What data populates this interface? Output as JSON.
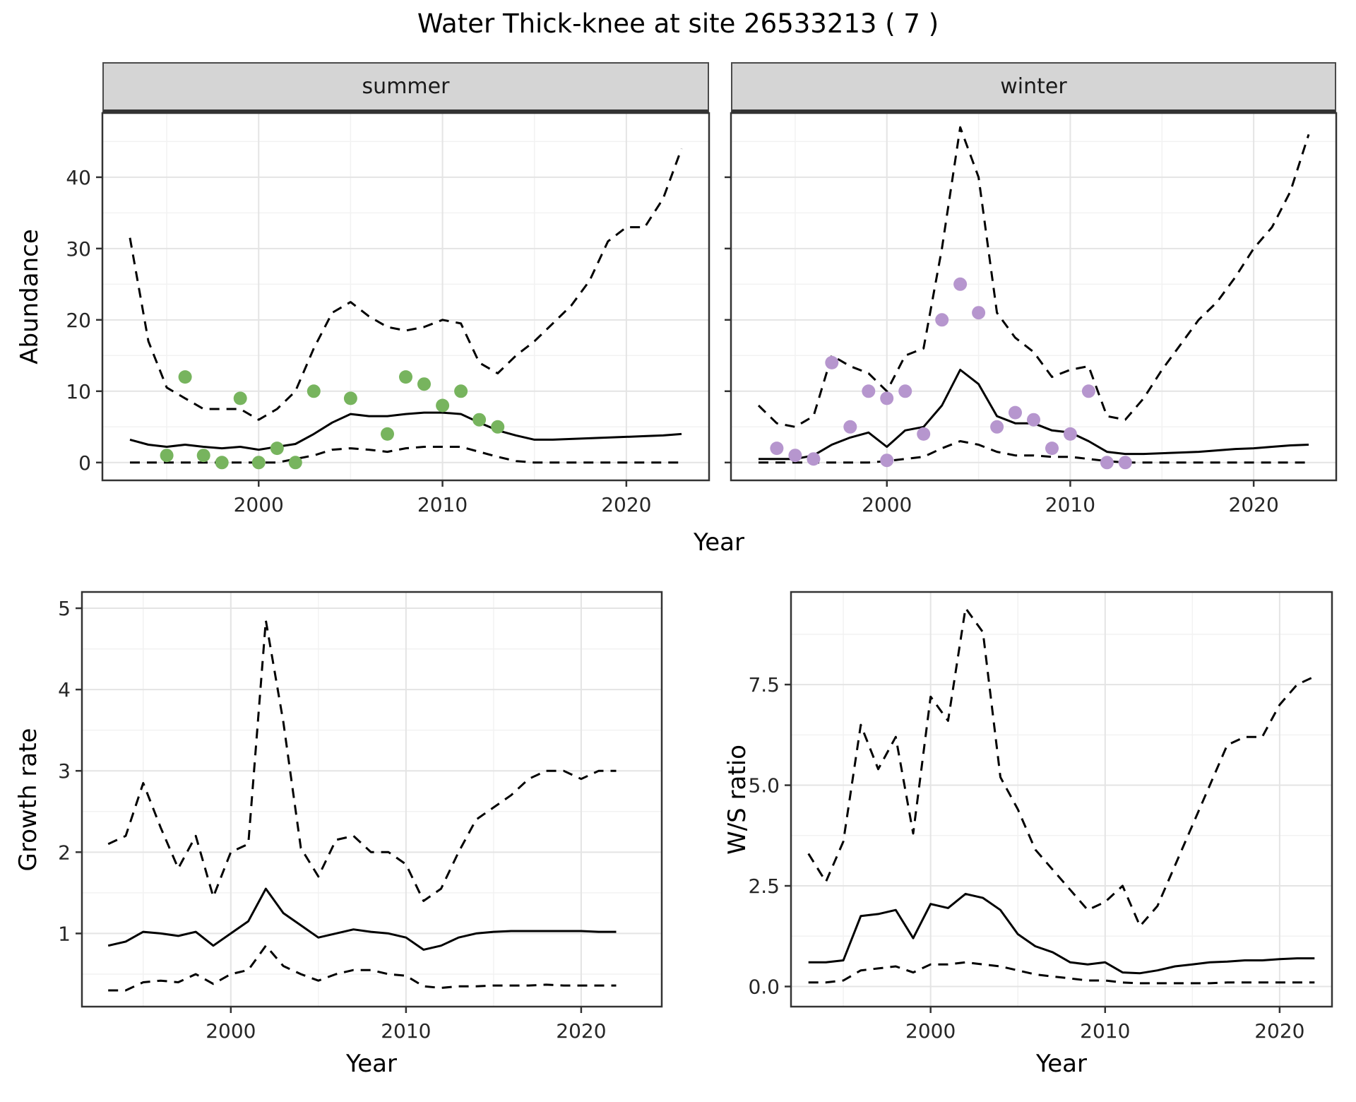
{
  "title": "Water Thick-knee at site 26533213 ( 7 )",
  "colors": {
    "summer_points": "#77b45e",
    "winter_points": "#b696ce",
    "line": "#000000",
    "strip_background": "#d5d5d5",
    "grid": "#e4e4e4",
    "panel_border": "#333333"
  },
  "chart_data": [
    {
      "id": "summer",
      "type": "line",
      "facet_label": "summer",
      "xlabel": "Year",
      "ylabel": "Abundance",
      "xlim": [
        1991.5,
        2024.5
      ],
      "ylim": [
        -2.5,
        49
      ],
      "xticks": [
        2000,
        2010,
        2020
      ],
      "yticks": [
        0,
        10,
        20,
        30,
        40
      ],
      "x": [
        1993,
        1994,
        1995,
        1996,
        1997,
        1998,
        1999,
        2000,
        2001,
        2002,
        2003,
        2004,
        2005,
        2006,
        2007,
        2008,
        2009,
        2010,
        2011,
        2012,
        2013,
        2014,
        2015,
        2016,
        2017,
        2018,
        2019,
        2020,
        2021,
        2022,
        2023
      ],
      "series": [
        {
          "name": "upper-ci",
          "style": "dashed",
          "color": "#000000",
          "values": [
            31.5,
            17,
            10.5,
            9,
            7.5,
            7.5,
            7.5,
            6,
            7.5,
            10,
            16,
            21,
            22.5,
            20.5,
            19,
            18.5,
            19,
            20,
            19.5,
            14,
            12.5,
            15,
            17,
            19.5,
            22,
            25.5,
            31,
            33,
            33,
            37,
            44
          ]
        },
        {
          "name": "fit",
          "style": "solid",
          "color": "#000000",
          "values": [
            3.2,
            2.5,
            2.2,
            2.5,
            2.2,
            2,
            2.2,
            1.8,
            2.2,
            2.6,
            4,
            5.6,
            6.8,
            6.5,
            6.5,
            6.8,
            7,
            7,
            6.8,
            5.6,
            4.5,
            3.8,
            3.2,
            3.2,
            3.3,
            3.4,
            3.5,
            3.6,
            3.7,
            3.8,
            4
          ]
        },
        {
          "name": "lower-ci",
          "style": "dashed",
          "color": "#000000",
          "values": [
            0,
            0,
            0,
            0,
            0,
            0,
            0,
            0,
            0,
            0.5,
            1,
            1.8,
            2,
            1.8,
            1.5,
            2,
            2.2,
            2.2,
            2.2,
            1.5,
            0.8,
            0.2,
            0,
            0,
            0,
            0,
            0,
            0,
            0,
            0,
            0
          ]
        }
      ],
      "points": {
        "name": "observed-counts-summer",
        "color": "#77b45e",
        "data": [
          [
            1995,
            1
          ],
          [
            1996,
            12
          ],
          [
            1997,
            1
          ],
          [
            1998,
            0
          ],
          [
            1999,
            9
          ],
          [
            2000,
            0
          ],
          [
            2001,
            2
          ],
          [
            2002,
            0
          ],
          [
            2003,
            10
          ],
          [
            2005,
            9
          ],
          [
            2007,
            4
          ],
          [
            2008,
            12
          ],
          [
            2009,
            11
          ],
          [
            2010,
            8
          ],
          [
            2011,
            10
          ],
          [
            2012,
            6
          ],
          [
            2013,
            5
          ]
        ]
      }
    },
    {
      "id": "winter",
      "type": "line",
      "facet_label": "winter",
      "xlabel": "Year",
      "ylabel": "Abundance",
      "xlim": [
        1991.5,
        2024.5
      ],
      "ylim": [
        -2.5,
        49
      ],
      "xticks": [
        2000,
        2010,
        2020
      ],
      "yticks": [
        0,
        10,
        20,
        30,
        40
      ],
      "x": [
        1993,
        1994,
        1995,
        1996,
        1997,
        1998,
        1999,
        2000,
        2001,
        2002,
        2003,
        2004,
        2005,
        2006,
        2007,
        2008,
        2009,
        2010,
        2011,
        2012,
        2013,
        2014,
        2015,
        2016,
        2017,
        2018,
        2019,
        2020,
        2021,
        2022,
        2023
      ],
      "series": [
        {
          "name": "upper-ci",
          "style": "dashed",
          "color": "#000000",
          "values": [
            8,
            5.5,
            5,
            6.5,
            15,
            13.5,
            12.5,
            10,
            15,
            16,
            30,
            47,
            40,
            21,
            17.5,
            15.5,
            12,
            13,
            13.5,
            6.5,
            6,
            9,
            13,
            16.5,
            20,
            22.5,
            26,
            30,
            33,
            38,
            46
          ]
        },
        {
          "name": "fit",
          "style": "solid",
          "color": "#000000",
          "values": [
            0.5,
            0.5,
            0.5,
            1,
            2.5,
            3.5,
            4.2,
            2.2,
            4.5,
            5,
            8,
            13,
            11,
            6.5,
            5.5,
            5.5,
            4.5,
            4.2,
            3,
            1.5,
            1.2,
            1.2,
            1.3,
            1.4,
            1.5,
            1.7,
            1.9,
            2,
            2.2,
            2.4,
            2.5
          ]
        },
        {
          "name": "lower-ci",
          "style": "dashed",
          "color": "#000000",
          "values": [
            0,
            0,
            0,
            0,
            0,
            0,
            0,
            0.2,
            0.5,
            0.8,
            2,
            3,
            2.5,
            1.5,
            1,
            1,
            0.8,
            0.8,
            0.5,
            0.2,
            0,
            0,
            0,
            0,
            0,
            0,
            0,
            0,
            0,
            0,
            0
          ]
        }
      ],
      "points": {
        "name": "observed-counts-winter",
        "color": "#b696ce",
        "data": [
          [
            1994,
            2
          ],
          [
            1995,
            1
          ],
          [
            1996,
            0.5
          ],
          [
            1997,
            14
          ],
          [
            1998,
            5
          ],
          [
            1999,
            10
          ],
          [
            2000,
            9
          ],
          [
            2000,
            0.3
          ],
          [
            2001,
            10
          ],
          [
            2002,
            4
          ],
          [
            2003,
            20
          ],
          [
            2004,
            25
          ],
          [
            2005,
            21
          ],
          [
            2006,
            5
          ],
          [
            2007,
            7
          ],
          [
            2008,
            6
          ],
          [
            2009,
            2
          ],
          [
            2010,
            4
          ],
          [
            2011,
            10
          ],
          [
            2012,
            0
          ],
          [
            2013,
            0
          ]
        ]
      }
    },
    {
      "id": "growth",
      "type": "line",
      "xlabel": "Year",
      "ylabel": "Growth rate",
      "xlim": [
        1991.5,
        2024.6
      ],
      "ylim": [
        0.1,
        5.2
      ],
      "xticks": [
        2000,
        2010,
        2020
      ],
      "yticks": [
        1,
        2,
        3,
        4,
        5
      ],
      "x": [
        1993,
        1994,
        1995,
        1996,
        1997,
        1998,
        1999,
        2000,
        2001,
        2002,
        2003,
        2004,
        2005,
        2006,
        2007,
        2008,
        2009,
        2010,
        2011,
        2012,
        2013,
        2014,
        2015,
        2016,
        2017,
        2018,
        2019,
        2020,
        2021,
        2022
      ],
      "series": [
        {
          "name": "upper-ci",
          "style": "dashed",
          "color": "#000000",
          "values": [
            2.1,
            2.2,
            2.85,
            2.3,
            1.8,
            2.2,
            1.45,
            2,
            2.1,
            4.85,
            3.6,
            2.05,
            1.7,
            2.15,
            2.2,
            2,
            2,
            1.85,
            1.4,
            1.55,
            2,
            2.4,
            2.55,
            2.7,
            2.9,
            3,
            3,
            2.9,
            3,
            3
          ]
        },
        {
          "name": "fit",
          "style": "solid",
          "color": "#000000",
          "values": [
            0.85,
            0.9,
            1.02,
            1,
            0.97,
            1.02,
            0.85,
            1,
            1.15,
            1.55,
            1.25,
            1.1,
            0.95,
            1,
            1.05,
            1.02,
            1,
            0.95,
            0.8,
            0.85,
            0.95,
            1,
            1.02,
            1.03,
            1.03,
            1.03,
            1.03,
            1.03,
            1.02,
            1.02
          ]
        },
        {
          "name": "lower-ci",
          "style": "dashed",
          "color": "#000000",
          "values": [
            0.3,
            0.3,
            0.4,
            0.42,
            0.4,
            0.5,
            0.38,
            0.5,
            0.55,
            0.85,
            0.6,
            0.5,
            0.42,
            0.5,
            0.55,
            0.55,
            0.5,
            0.48,
            0.35,
            0.33,
            0.35,
            0.35,
            0.36,
            0.36,
            0.36,
            0.37,
            0.36,
            0.36,
            0.36,
            0.36
          ]
        }
      ],
      "points": null
    },
    {
      "id": "ratio",
      "type": "line",
      "xlabel": "Year",
      "ylabel": "W/S ratio",
      "xlim": [
        1992,
        2023
      ],
      "ylim": [
        -0.5,
        9.8
      ],
      "xticks": [
        2000,
        2010,
        2020
      ],
      "yticks": [
        0,
        2.5,
        5,
        7.5
      ],
      "ytick_labels": [
        "0.0",
        "2.5",
        "5.0",
        "7.5"
      ],
      "x": [
        1993,
        1994,
        1995,
        1996,
        1997,
        1998,
        1999,
        2000,
        2001,
        2002,
        2003,
        2004,
        2005,
        2006,
        2007,
        2008,
        2009,
        2010,
        2011,
        2012,
        2013,
        2014,
        2015,
        2016,
        2017,
        2018,
        2019,
        2020,
        2021,
        2022
      ],
      "series": [
        {
          "name": "upper-ci",
          "style": "dashed",
          "color": "#000000",
          "values": [
            3.3,
            2.6,
            3.6,
            6.5,
            5.4,
            6.2,
            3.8,
            7.2,
            6.6,
            9.4,
            8.8,
            5.2,
            4.4,
            3.4,
            2.9,
            2.4,
            1.9,
            2.1,
            2.5,
            1.5,
            2,
            3,
            4,
            5,
            6,
            6.2,
            6.2,
            7,
            7.5,
            7.7
          ]
        },
        {
          "name": "fit",
          "style": "solid",
          "color": "#000000",
          "values": [
            0.6,
            0.6,
            0.65,
            1.75,
            1.8,
            1.9,
            1.2,
            2.05,
            1.95,
            2.3,
            2.2,
            1.9,
            1.3,
            1,
            0.85,
            0.6,
            0.55,
            0.6,
            0.35,
            0.33,
            0.4,
            0.5,
            0.55,
            0.6,
            0.62,
            0.65,
            0.65,
            0.68,
            0.7,
            0.7
          ]
        },
        {
          "name": "lower-ci",
          "style": "dashed",
          "color": "#000000",
          "values": [
            0.1,
            0.1,
            0.15,
            0.4,
            0.45,
            0.5,
            0.35,
            0.55,
            0.55,
            0.6,
            0.55,
            0.5,
            0.4,
            0.3,
            0.25,
            0.2,
            0.15,
            0.15,
            0.1,
            0.08,
            0.08,
            0.08,
            0.08,
            0.08,
            0.1,
            0.1,
            0.1,
            0.1,
            0.1,
            0.1
          ]
        }
      ],
      "points": null
    }
  ]
}
